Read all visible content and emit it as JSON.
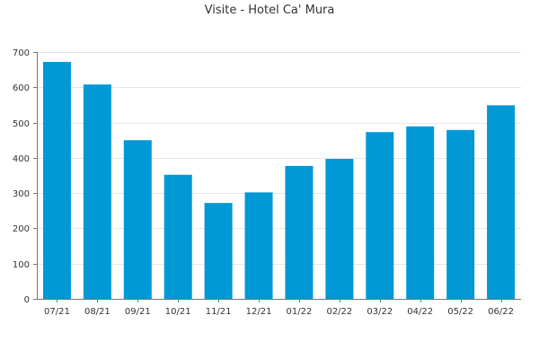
{
  "chart_data": {
    "type": "bar",
    "title": "Visite - Hotel Ca' Mura",
    "xlabel": "",
    "ylabel": "",
    "categories": [
      "07/21",
      "08/21",
      "09/21",
      "10/21",
      "11/21",
      "12/21",
      "01/22",
      "02/22",
      "03/22",
      "04/22",
      "05/22",
      "06/22"
    ],
    "values": [
      672,
      608,
      450,
      352,
      272,
      302,
      377,
      397,
      473,
      489,
      479,
      549
    ],
    "ylim": [
      0,
      700
    ],
    "yticks": [
      0,
      100,
      200,
      300,
      400,
      500,
      600,
      700
    ],
    "grid": true,
    "legend": "none",
    "bar_color": "#0099d6"
  }
}
